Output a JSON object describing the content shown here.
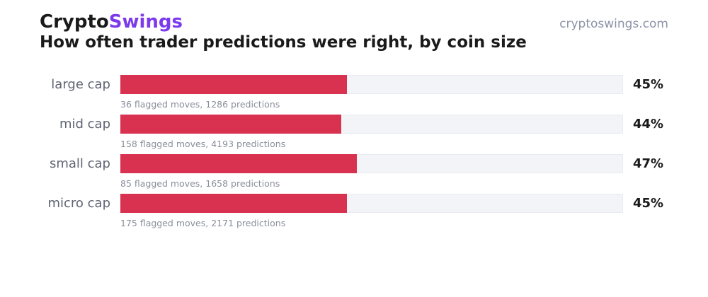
{
  "header": {
    "brand_part1": "Crypto",
    "brand_part2": "Swings",
    "site": "cryptoswings.com",
    "subtitle": "How often trader predictions were right, by coin size"
  },
  "colors": {
    "brand_accent": "#7c3aed",
    "bar_fill": "#d93150",
    "bar_track": "#f3f4f8"
  },
  "chart_data": {
    "type": "bar",
    "orientation": "horizontal",
    "categories": [
      "large cap",
      "mid cap",
      "small cap",
      "micro cap"
    ],
    "values": [
      45,
      44,
      47,
      45
    ],
    "value_labels": [
      "45%",
      "44%",
      "47%",
      "45%"
    ],
    "notes": [
      "36 flagged moves, 1286 predictions",
      "158 flagged moves, 4193 predictions",
      "85 flagged moves, 1658 predictions",
      "175 flagged moves, 2171 predictions"
    ],
    "xlim": [
      0,
      100
    ],
    "unit": "%"
  }
}
